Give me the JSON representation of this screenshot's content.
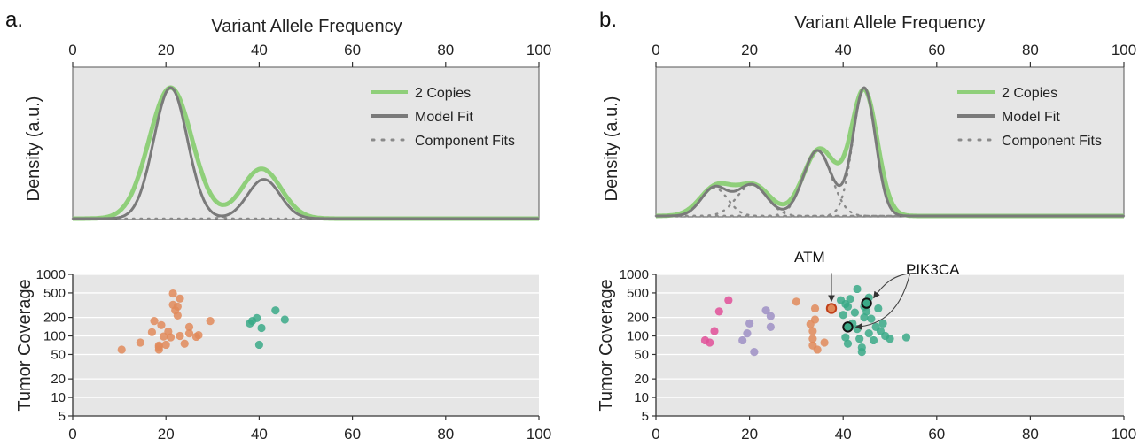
{
  "colors": {
    "plot_bg": "#e6e6e6",
    "grid": "#ffffff",
    "two_copies": "#8fcf7a",
    "model_fit": "#7a7a7a",
    "component_fits": "#8a8a8a",
    "orange": "#e08a5a",
    "teal": "#3aa987",
    "purple": "#9d8fc4",
    "magenta": "#e04f98",
    "highlight_ring": "#111111"
  },
  "panels": [
    {
      "letter": "a.",
      "density": {
        "title": "Variant Allele Frequency",
        "ylabel": "Density (a.u.)",
        "xticks": [
          "0",
          "20",
          "40",
          "60",
          "80",
          "100"
        ],
        "legend": [
          "2 Copies",
          "Model Fit",
          "Component Fits"
        ]
      },
      "coverage": {
        "ylabel": "Tumor Coverage",
        "xticks": [
          "0",
          "20",
          "40",
          "60",
          "80",
          "100"
        ],
        "yticks": [
          "1000",
          "500",
          "200",
          "100",
          "50",
          "20",
          "10",
          "5"
        ]
      }
    },
    {
      "letter": "b.",
      "density": {
        "title": "Variant Allele Frequency",
        "ylabel": "Density (a.u.)",
        "xticks": [
          "0",
          "20",
          "40",
          "60",
          "80",
          "100"
        ],
        "legend": [
          "2 Copies",
          "Model Fit",
          "Component Fits"
        ]
      },
      "coverage": {
        "ylabel": "Tumor Coverage",
        "xticks": [
          "0",
          "20",
          "40",
          "60",
          "80",
          "100"
        ],
        "yticks": [
          "1000",
          "500",
          "200",
          "100",
          "50",
          "20",
          "10",
          "5"
        ],
        "annotations": [
          "ATM",
          "PIK3CA"
        ]
      }
    }
  ],
  "chart_data": [
    {
      "type": "line",
      "panel": "a",
      "title": "Variant Allele Frequency",
      "ylabel": "Density (a.u.)",
      "xlim": [
        0,
        100
      ],
      "legend": "top-right",
      "series": [
        {
          "name": "2 Copies",
          "components": [
            {
              "mu": 21,
              "sigma": 4.6,
              "weight": 1.0
            },
            {
              "mu": 40.5,
              "sigma": 4.2,
              "weight": 0.38
            }
          ]
        },
        {
          "name": "Model Fit",
          "components": [
            {
              "mu": 21,
              "sigma": 3.6,
              "weight": 1.0
            },
            {
              "mu": 41,
              "sigma": 3.5,
              "weight": 0.3
            }
          ]
        },
        {
          "name": "Component Fits",
          "style": "dotted"
        }
      ]
    },
    {
      "type": "scatter",
      "panel": "a",
      "ylabel": "Tumor Coverage",
      "xlim": [
        0,
        100
      ],
      "ylim": [
        5,
        1000
      ],
      "yscale": "log",
      "series": [
        {
          "name": "",
          "color": "orange",
          "points": [
            [
              10.5,
              60
            ],
            [
              14.5,
              78
            ],
            [
              17,
              115
            ],
            [
              17.5,
              175
            ],
            [
              18.5,
              70
            ],
            [
              18.5,
              60
            ],
            [
              18.5,
              66
            ],
            [
              19,
              150
            ],
            [
              19.5,
              98
            ],
            [
              20,
              72
            ],
            [
              20.5,
              118
            ],
            [
              21,
              95
            ],
            [
              21.5,
              320
            ],
            [
              21.5,
              490
            ],
            [
              22,
              260
            ],
            [
              22.5,
              215
            ],
            [
              23,
              100
            ],
            [
              23,
              405
            ],
            [
              24,
              75
            ],
            [
              25,
              140
            ],
            [
              25,
              110
            ],
            [
              26.5,
              97
            ],
            [
              27,
              103
            ],
            [
              29.5,
              175
            ],
            [
              22.5,
              300
            ]
          ]
        },
        {
          "name": "",
          "color": "teal",
          "points": [
            [
              38,
              160
            ],
            [
              38.5,
              175
            ],
            [
              39.5,
              195
            ],
            [
              40.5,
              135
            ],
            [
              40,
              72
            ],
            [
              43.5,
              260
            ],
            [
              45.5,
              185
            ]
          ]
        }
      ]
    },
    {
      "type": "line",
      "panel": "b",
      "title": "Variant Allele Frequency",
      "ylabel": "Density (a.u.)",
      "xlim": [
        0,
        100
      ],
      "legend": "top-right",
      "series": [
        {
          "name": "2 Copies",
          "components": [
            {
              "mu": 13,
              "sigma": 3.5,
              "weight": 0.2
            },
            {
              "mu": 21,
              "sigma": 3.5,
              "weight": 0.2
            },
            {
              "mu": 35,
              "sigma": 3.5,
              "weight": 0.45
            },
            {
              "mu": 44.5,
              "sigma": 2.8,
              "weight": 0.84
            }
          ]
        },
        {
          "name": "Model Fit",
          "components": [
            {
              "mu": 12.5,
              "sigma": 2.8,
              "weight": 0.19
            },
            {
              "mu": 20.5,
              "sigma": 3.2,
              "weight": 0.21
            },
            {
              "mu": 34.5,
              "sigma": 3.0,
              "weight": 0.44
            },
            {
              "mu": 44.5,
              "sigma": 2.4,
              "weight": 0.86
            }
          ]
        },
        {
          "name": "Component Fits",
          "style": "dotted"
        }
      ]
    },
    {
      "type": "scatter",
      "panel": "b",
      "ylabel": "Tumor Coverage",
      "xlim": [
        0,
        100
      ],
      "ylim": [
        5,
        1000
      ],
      "yscale": "log",
      "series": [
        {
          "name": "",
          "color": "magenta",
          "points": [
            [
              10.5,
              85
            ],
            [
              11.5,
              78
            ],
            [
              12.5,
              120
            ],
            [
              13.5,
              250
            ],
            [
              15.5,
              380
            ]
          ]
        },
        {
          "name": "",
          "color": "purple",
          "points": [
            [
              18.5,
              85
            ],
            [
              19.5,
              110
            ],
            [
              20,
              160
            ],
            [
              21,
              55
            ],
            [
              23.5,
              260
            ],
            [
              24.5,
              140
            ],
            [
              24.5,
              210
            ]
          ]
        },
        {
          "name": "",
          "color": "orange",
          "points": [
            [
              30,
              360
            ],
            [
              33,
              155
            ],
            [
              33.5,
              90
            ],
            [
              33.5,
              120
            ],
            [
              33.5,
              70
            ],
            [
              34,
              280
            ],
            [
              34.5,
              60
            ],
            [
              34,
              185
            ],
            [
              36,
              78
            ],
            [
              37.5,
              280
            ]
          ]
        },
        {
          "name": "",
          "color": "teal",
          "points": [
            [
              39.5,
              380
            ],
            [
              40,
              220
            ],
            [
              40.5,
              95
            ],
            [
              40.5,
              330
            ],
            [
              41,
              300
            ],
            [
              41,
              75
            ],
            [
              41.5,
              400
            ],
            [
              42,
              160
            ],
            [
              42.5,
              240
            ],
            [
              43,
              130
            ],
            [
              43,
              580
            ],
            [
              43.5,
              90
            ],
            [
              44,
              65
            ],
            [
              44,
              55
            ],
            [
              44.5,
              200
            ],
            [
              44.5,
              300
            ],
            [
              45,
              250
            ],
            [
              45.5,
              110
            ],
            [
              45.5,
              420
            ],
            [
              46,
              190
            ],
            [
              46.5,
              85
            ],
            [
              47,
              140
            ],
            [
              47.5,
              280
            ],
            [
              48,
              120
            ],
            [
              48.5,
              160
            ],
            [
              49,
              100
            ],
            [
              50,
              90
            ],
            [
              53.5,
              95
            ],
            [
              41,
              140
            ],
            [
              45,
              340
            ]
          ]
        }
      ],
      "annotations": [
        {
          "text": "ATM",
          "x": 37.5,
          "y": 280
        },
        {
          "text": "PIK3CA",
          "x": 45,
          "y": 340
        },
        {
          "text": "PIK3CA",
          "x": 41,
          "y": 140
        }
      ]
    }
  ]
}
